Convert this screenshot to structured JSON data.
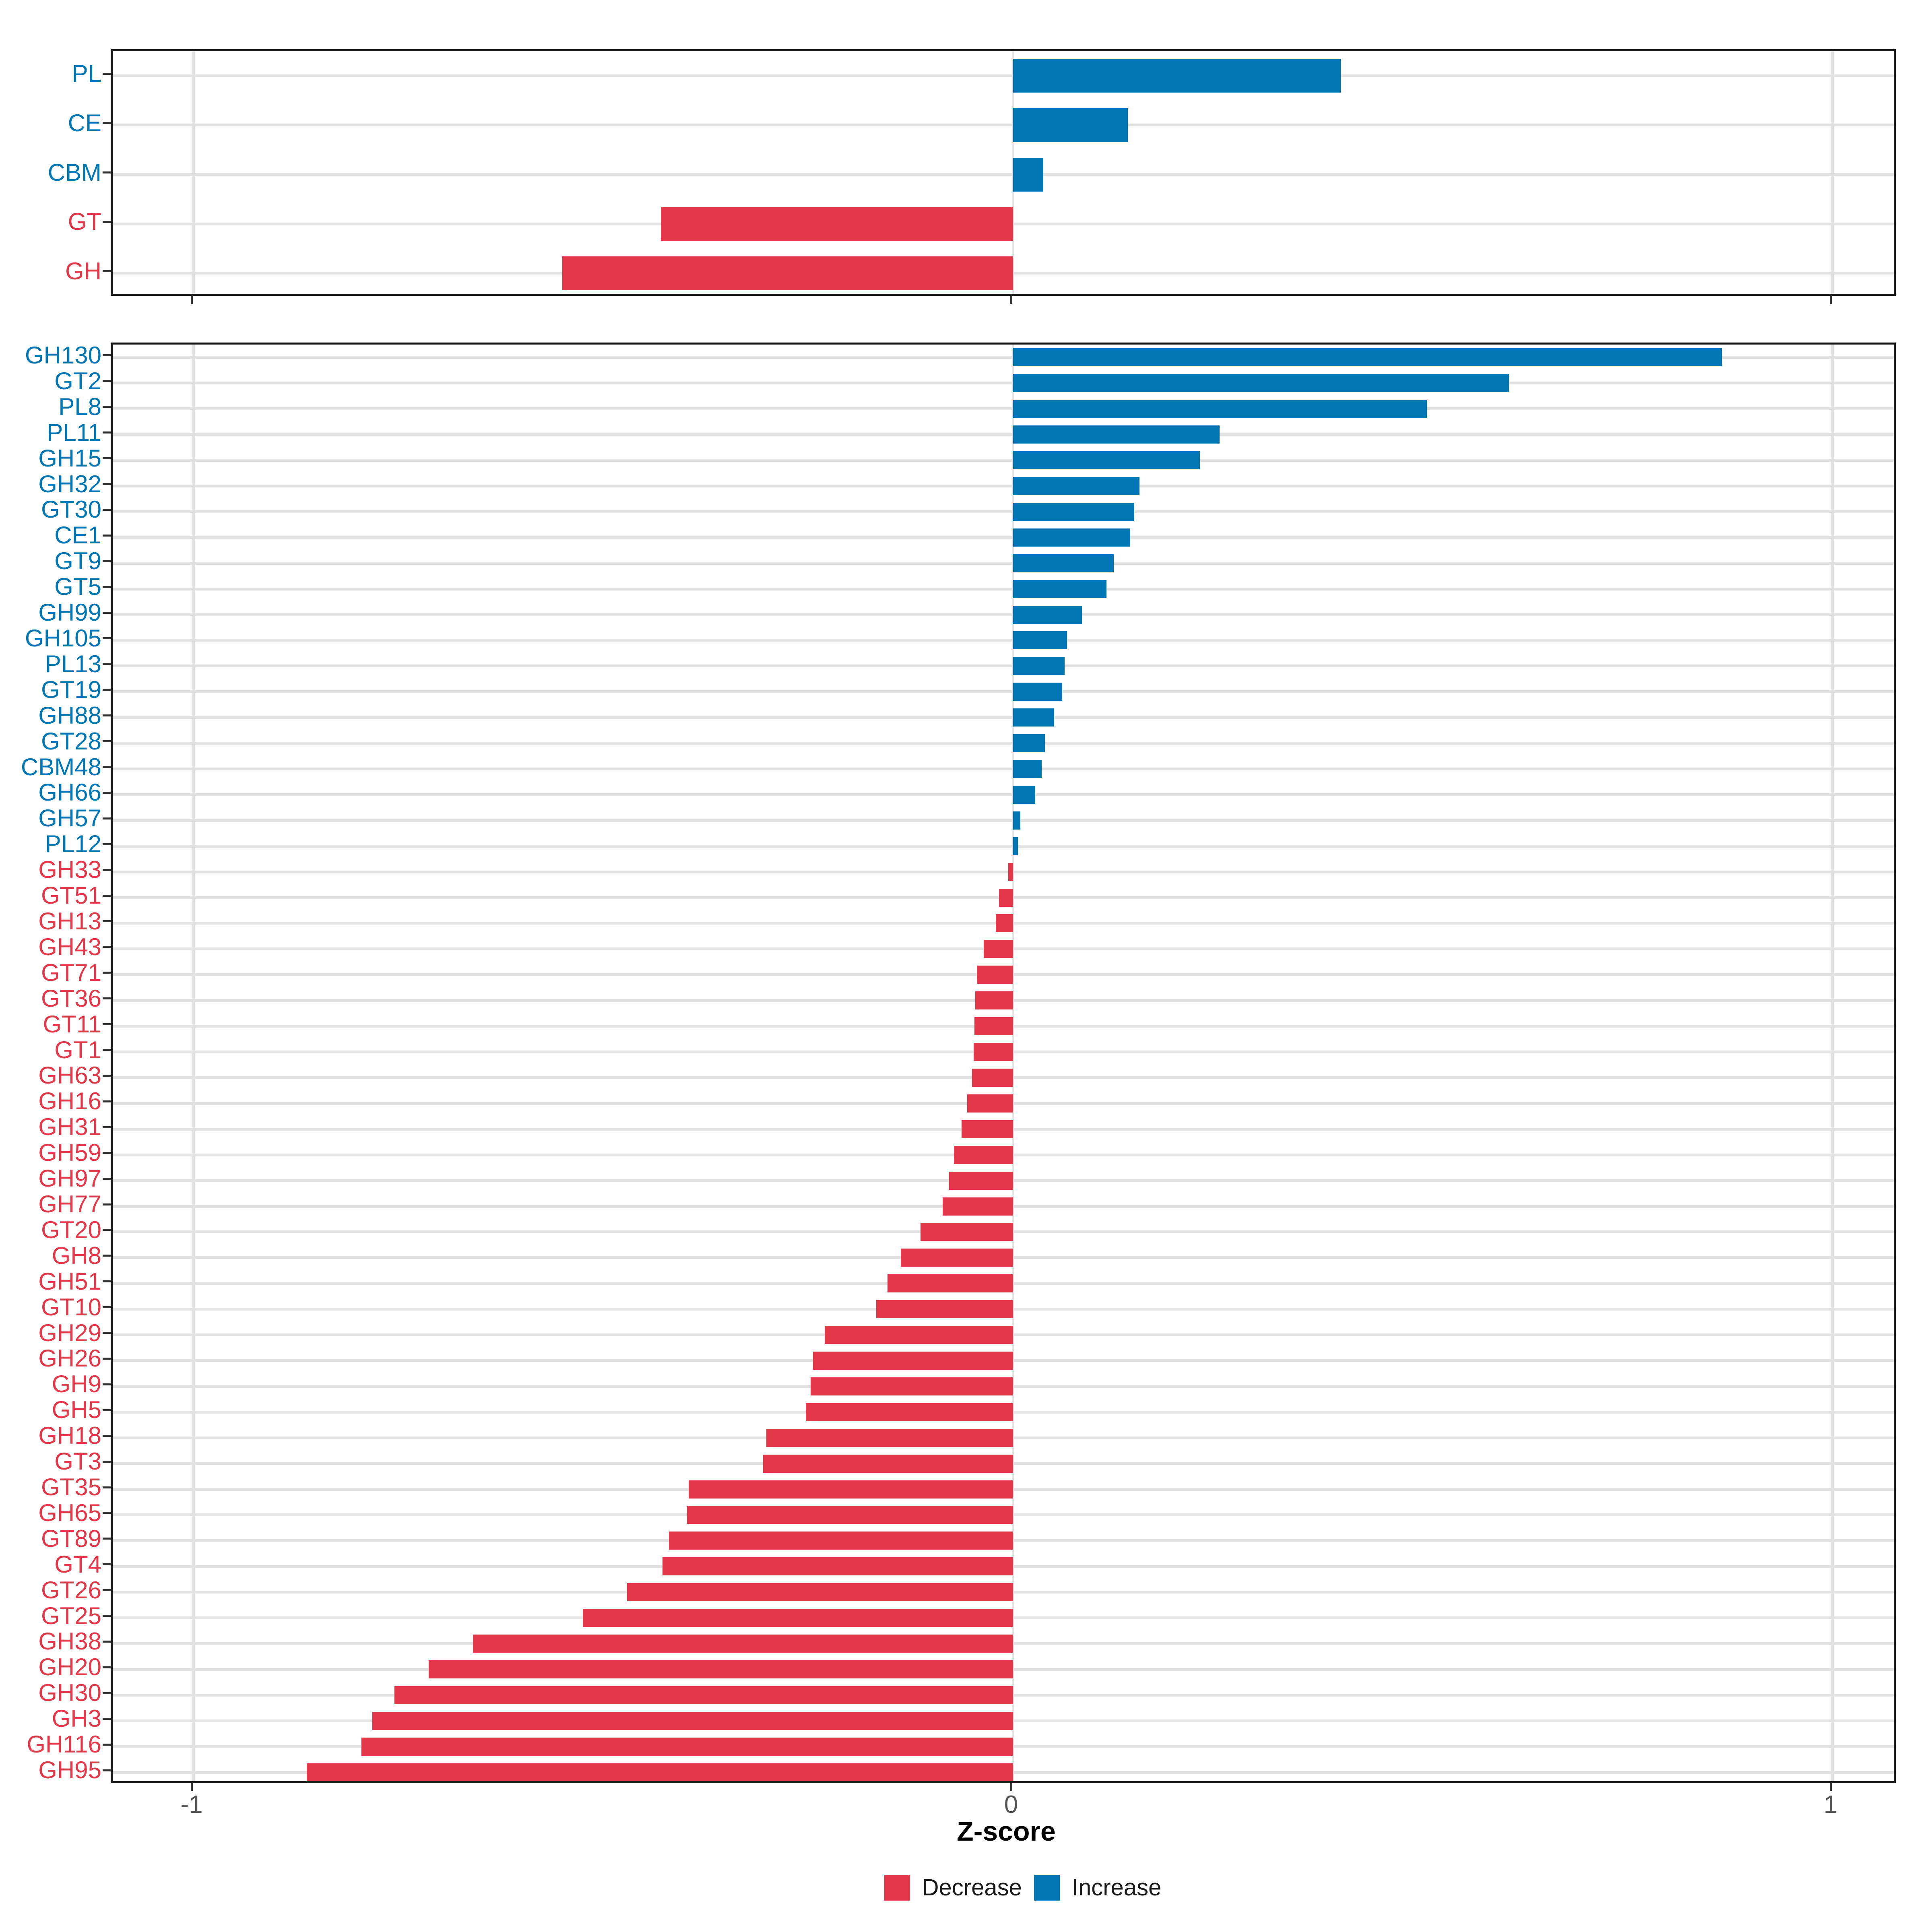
{
  "axis": {
    "label": "Z-score",
    "ticks": [
      -1,
      0,
      1
    ],
    "tick_labels": [
      "-1",
      "0",
      "1"
    ]
  },
  "colors": {
    "increase": "#0077B5",
    "decrease": "#E3384A",
    "grid": "#E2E2E2",
    "panel_border": "#1A1A1A",
    "tick": "#333333",
    "tick_label": "#555555"
  },
  "legend": [
    {
      "label": "Decrease",
      "color": "#E3384A"
    },
    {
      "label": "Increase",
      "color": "#0077B5"
    }
  ],
  "chart_data": [
    {
      "name": "category_summary_panel",
      "type": "bar",
      "orientation": "horizontal",
      "title": "",
      "xlabel": "",
      "ylabel": "",
      "xlim": [
        -1.1,
        1.08
      ],
      "grid": true,
      "x_gridlines": [
        -1,
        0,
        1
      ],
      "categories": [
        "PL",
        "CE",
        "CBM",
        "GT",
        "GH"
      ],
      "values": [
        0.4,
        0.14,
        0.037,
        -0.43,
        -0.55
      ]
    },
    {
      "name": "family_detail_panel",
      "type": "bar",
      "orientation": "horizontal",
      "title": "",
      "xlabel": "Z-score",
      "ylabel": "",
      "xlim": [
        -1.1,
        1.08
      ],
      "grid": true,
      "x_gridlines": [
        -1,
        0,
        1
      ],
      "categories": [
        "GH130",
        "GT2",
        "PL8",
        "PL11",
        "GH15",
        "GH32",
        "GT30",
        "CE1",
        "GT9",
        "GT5",
        "GH99",
        "GH105",
        "PL13",
        "GT19",
        "GH88",
        "GT28",
        "CBM48",
        "GH66",
        "GH57",
        "PL12",
        "GH33",
        "GT51",
        "GH13",
        "GH43",
        "GT71",
        "GT36",
        "GT11",
        "GT1",
        "GH63",
        "GH16",
        "GH31",
        "GH59",
        "GH97",
        "GH77",
        "GT20",
        "GH8",
        "GH51",
        "GT10",
        "GH29",
        "GH26",
        "GH9",
        "GH5",
        "GH18",
        "GT3",
        "GT35",
        "GH65",
        "GT89",
        "GT4",
        "GT26",
        "GT25",
        "GH38",
        "GH20",
        "GH30",
        "GH3",
        "GH116",
        "GH95"
      ],
      "values": [
        0.865,
        0.605,
        0.505,
        0.252,
        0.228,
        0.154,
        0.148,
        0.143,
        0.123,
        0.114,
        0.084,
        0.066,
        0.063,
        0.06,
        0.05,
        0.039,
        0.035,
        0.027,
        0.009,
        0.006,
        -0.006,
        -0.017,
        -0.021,
        -0.036,
        -0.044,
        -0.046,
        -0.047,
        -0.048,
        -0.05,
        -0.056,
        -0.063,
        -0.072,
        -0.078,
        -0.086,
        -0.113,
        -0.137,
        -0.153,
        -0.167,
        -0.23,
        -0.244,
        -0.247,
        -0.253,
        -0.301,
        -0.305,
        -0.396,
        -0.398,
        -0.42,
        -0.428,
        -0.471,
        -0.525,
        -0.659,
        -0.713,
        -0.755,
        -0.782,
        -0.795,
        -0.862
      ]
    }
  ]
}
